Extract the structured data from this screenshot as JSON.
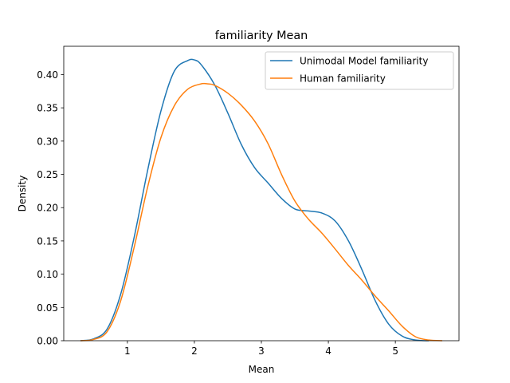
{
  "chart_data": {
    "type": "line",
    "title": "familiarity Mean",
    "xlabel": "Mean",
    "ylabel": "Density",
    "xlim": [
      0.05,
      5.95
    ],
    "ylim": [
      0.0,
      0.4425
    ],
    "xticks": [
      1,
      2,
      3,
      4,
      5
    ],
    "xtick_labels": [
      "1",
      "2",
      "3",
      "4",
      "5"
    ],
    "yticks": [
      0.0,
      0.05,
      0.1,
      0.15,
      0.2,
      0.25,
      0.3,
      0.35,
      0.4
    ],
    "ytick_labels": [
      "0.00",
      "0.05",
      "0.10",
      "0.15",
      "0.20",
      "0.25",
      "0.30",
      "0.35",
      "0.40"
    ],
    "grid": false,
    "legend_position": "top-right",
    "series": [
      {
        "name": "Unimodal Model familiarity",
        "color": "#1f77b4",
        "x": [
          0.3,
          0.5,
          0.7,
          0.9,
          1.1,
          1.3,
          1.5,
          1.7,
          1.9,
          2.0,
          2.1,
          2.3,
          2.5,
          2.7,
          2.9,
          3.1,
          3.3,
          3.5,
          3.7,
          3.9,
          4.1,
          4.3,
          4.5,
          4.7,
          4.9,
          5.1,
          5.3,
          5.5
        ],
        "y": [
          0.0,
          0.003,
          0.018,
          0.07,
          0.155,
          0.255,
          0.345,
          0.405,
          0.421,
          0.422,
          0.415,
          0.385,
          0.342,
          0.295,
          0.26,
          0.237,
          0.214,
          0.198,
          0.195,
          0.192,
          0.18,
          0.15,
          0.107,
          0.06,
          0.025,
          0.007,
          0.001,
          0.0
        ]
      },
      {
        "name": "Human familiarity",
        "color": "#ff7f0e",
        "x": [
          0.3,
          0.5,
          0.7,
          0.9,
          1.1,
          1.3,
          1.5,
          1.7,
          1.9,
          2.1,
          2.2,
          2.3,
          2.5,
          2.7,
          2.9,
          3.1,
          3.3,
          3.5,
          3.7,
          3.9,
          4.1,
          4.3,
          4.5,
          4.7,
          4.9,
          5.1,
          5.3,
          5.5,
          5.7
        ],
        "y": [
          0.0,
          0.002,
          0.014,
          0.06,
          0.14,
          0.23,
          0.305,
          0.353,
          0.378,
          0.386,
          0.386,
          0.384,
          0.372,
          0.354,
          0.33,
          0.296,
          0.25,
          0.21,
          0.183,
          0.162,
          0.138,
          0.113,
          0.091,
          0.067,
          0.045,
          0.022,
          0.006,
          0.001,
          0.0
        ]
      }
    ]
  }
}
